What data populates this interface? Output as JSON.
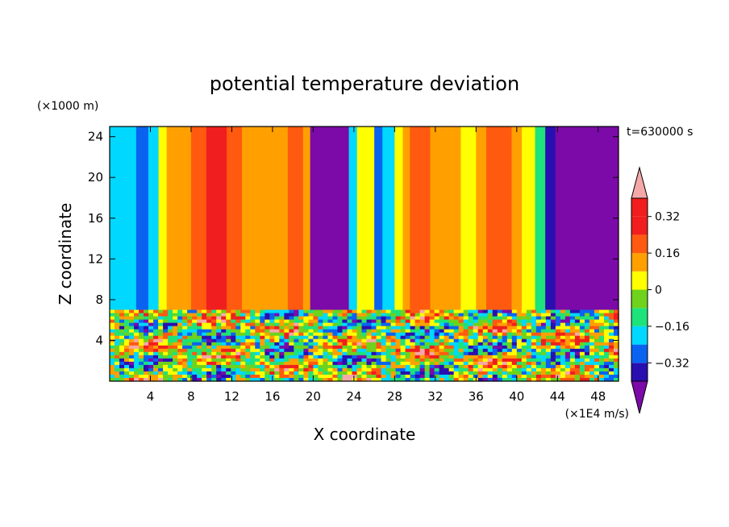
{
  "chart_data": {
    "type": "heatmap",
    "title": "potential temperature deviation",
    "xlabel": "X coordinate",
    "ylabel": "Z coordinate",
    "x_unit": "(×1E4 m/s)",
    "y_unit": "(×1000 m)",
    "time_label": "t=630000 s",
    "xlim": [
      0,
      50
    ],
    "ylim": [
      0,
      25
    ],
    "x_ticks": [
      4,
      8,
      12,
      16,
      20,
      24,
      28,
      32,
      36,
      40,
      44,
      48
    ],
    "y_ticks": [
      4,
      8,
      12,
      16,
      20,
      24
    ],
    "colorbar": {
      "levels": [
        -0.4,
        -0.32,
        -0.24,
        -0.16,
        -0.08,
        0,
        0.08,
        0.16,
        0.24,
        0.32,
        0.4
      ],
      "labels": [
        "0.32",
        "0.16",
        "0",
        "−0.16",
        "−0.32"
      ],
      "label_values": [
        0.32,
        0.16,
        0,
        -0.16,
        -0.32
      ],
      "colors": [
        "#7b0aa8",
        "#2a0fb0",
        "#0a63f0",
        "#00d8ff",
        "#1ee27a",
        "#6fd21c",
        "#ffff00",
        "#ffa000",
        "#ff5a10",
        "#f01e1e",
        "#f5a8a8"
      ],
      "extend": "both"
    },
    "field": {
      "upper_layer_z": [
        7,
        25
      ],
      "upper_bands_x": [
        [
          0,
          0.7,
          "#00d8ff"
        ],
        [
          0.7,
          2.6,
          "#00d8ff"
        ],
        [
          2.6,
          3.8,
          "#0a63f0"
        ],
        [
          3.8,
          4.8,
          "#00d8ff"
        ],
        [
          4.8,
          5.6,
          "#ffff00"
        ],
        [
          5.6,
          8,
          "#ffa000"
        ],
        [
          8,
          9.5,
          "#ff5a10"
        ],
        [
          9.5,
          11.5,
          "#f01e1e"
        ],
        [
          11.5,
          13,
          "#ff5a10"
        ],
        [
          13,
          17.5,
          "#ffa000"
        ],
        [
          17.5,
          19,
          "#ff5a10"
        ],
        [
          19,
          19.7,
          "#ffa000"
        ],
        [
          19.7,
          23.5,
          "#7b0aa8"
        ],
        [
          23.5,
          24.3,
          "#00d8ff"
        ],
        [
          24.3,
          26,
          "#ffff00"
        ],
        [
          26,
          26.8,
          "#0a63f0"
        ],
        [
          26.8,
          28,
          "#00d8ff"
        ],
        [
          28,
          28.8,
          "#ffff00"
        ],
        [
          28.8,
          29.5,
          "#ffa000"
        ],
        [
          29.5,
          31.5,
          "#ff5a10"
        ],
        [
          31.5,
          33,
          "#ffa000"
        ],
        [
          33,
          34.5,
          "#ffa000"
        ],
        [
          34.5,
          36,
          "#ffff00"
        ],
        [
          36,
          37,
          "#ffa000"
        ],
        [
          37,
          39.5,
          "#ff5a10"
        ],
        [
          39.5,
          40.5,
          "#ffa000"
        ],
        [
          40.5,
          41.8,
          "#ffff00"
        ],
        [
          41.8,
          42.8,
          "#1ee27a"
        ],
        [
          42.8,
          43.8,
          "#2a0fb0"
        ],
        [
          43.8,
          50,
          "#7b0aa8"
        ]
      ]
    }
  }
}
